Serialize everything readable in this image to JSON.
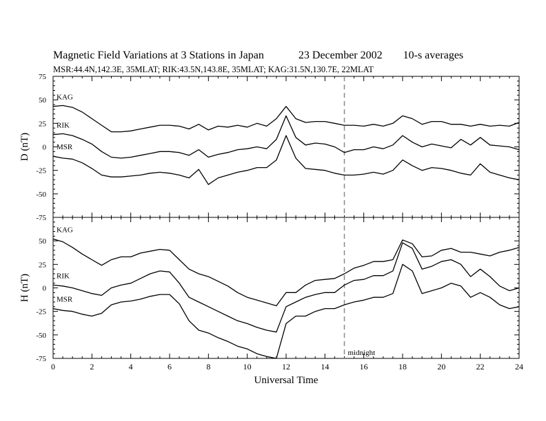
{
  "header": {
    "title": "Magnetic Field Variations at 3 Stations in Japan",
    "date": "23 December 2002",
    "averaging": "10-s averages",
    "stations_line": "MSR:44.4N,142.3E, 35MLAT;  RIK:43.5N,143.8E, 35MLAT;  KAG:31.5N,130.7E, 22MLAT"
  },
  "chart_data": [
    {
      "type": "line",
      "panel": "D",
      "ylabel": "D (nT)",
      "ylim": [
        -75,
        75
      ],
      "yticks": [
        75,
        50,
        25,
        0,
        -25,
        -50,
        -75
      ],
      "xlim": [
        0,
        24
      ],
      "grid": false,
      "series": [
        {
          "name": "KAG",
          "color": "#000000",
          "x": [
            0,
            0.5,
            1,
            1.5,
            2,
            2.5,
            3,
            3.5,
            4,
            4.5,
            5,
            5.5,
            6,
            6.5,
            7,
            7.5,
            8,
            8.5,
            9,
            9.5,
            10,
            10.5,
            11,
            11.5,
            12,
            12.5,
            13,
            13.5,
            14,
            14.5,
            15,
            15.5,
            16,
            16.5,
            17,
            17.5,
            18,
            18.5,
            19,
            19.5,
            20,
            20.5,
            21,
            21.5,
            22,
            22.5,
            23,
            23.5,
            24
          ],
          "y": [
            43,
            44,
            42,
            37,
            30,
            23,
            16,
            16,
            17,
            19,
            21,
            23,
            23,
            22,
            19,
            24,
            18,
            22,
            21,
            23,
            21,
            25,
            22,
            30,
            43,
            30,
            26,
            27,
            27,
            25,
            23,
            23,
            22,
            24,
            22,
            25,
            33,
            30,
            24,
            27,
            27,
            24,
            24,
            22,
            24,
            22,
            23,
            22,
            26
          ]
        },
        {
          "name": "RIK",
          "color": "#000000",
          "x": [
            0,
            0.5,
            1,
            1.5,
            2,
            2.5,
            3,
            3.5,
            4,
            4.5,
            5,
            5.5,
            6,
            6.5,
            7,
            7.5,
            8,
            8.5,
            9,
            9.5,
            10,
            10.5,
            11,
            11.5,
            12,
            12.5,
            13,
            13.5,
            14,
            14.5,
            15,
            15.5,
            16,
            16.5,
            17,
            17.5,
            18,
            18.5,
            19,
            19.5,
            20,
            20.5,
            21,
            21.5,
            22,
            22.5,
            23,
            23.5,
            24
          ],
          "y": [
            13,
            14,
            12,
            8,
            3,
            -5,
            -11,
            -12,
            -11,
            -9,
            -7,
            -5,
            -5,
            -6,
            -9,
            -3,
            -11,
            -8,
            -6,
            -3,
            -2,
            0,
            -2,
            8,
            33,
            10,
            2,
            4,
            3,
            0,
            -6,
            -3,
            -3,
            0,
            -2,
            2,
            12,
            5,
            0,
            3,
            1,
            -1,
            8,
            2,
            10,
            2,
            1,
            0,
            -3
          ]
        },
        {
          "name": "MSR",
          "color": "#000000",
          "x": [
            0,
            0.5,
            1,
            1.5,
            2,
            2.5,
            3,
            3.5,
            4,
            4.5,
            5,
            5.5,
            6,
            6.5,
            7,
            7.5,
            8,
            8.5,
            9,
            9.5,
            10,
            10.5,
            11,
            11.5,
            12,
            12.5,
            13,
            13.5,
            14,
            14.5,
            15,
            15.5,
            16,
            16.5,
            17,
            17.5,
            18,
            18.5,
            19,
            19.5,
            20,
            20.5,
            21,
            21.5,
            22,
            22.5,
            23,
            23.5,
            24
          ],
          "y": [
            -10,
            -12,
            -13,
            -17,
            -23,
            -30,
            -32,
            -32,
            -31,
            -30,
            -28,
            -27,
            -28,
            -30,
            -33,
            -24,
            -40,
            -33,
            -30,
            -27,
            -25,
            -22,
            -22,
            -14,
            12,
            -12,
            -23,
            -24,
            -25,
            -28,
            -30,
            -30,
            -29,
            -27,
            -29,
            -25,
            -14,
            -20,
            -25,
            -22,
            -23,
            -25,
            -28,
            -30,
            -18,
            -27,
            -30,
            -33,
            -35
          ]
        }
      ],
      "labels": [
        "KAG",
        "RIK",
        "MSR"
      ]
    },
    {
      "type": "line",
      "panel": "H",
      "ylabel": "H (nT)",
      "ylim": [
        -75,
        75
      ],
      "yticks": [
        75,
        50,
        25,
        0,
        -25,
        -50,
        -75
      ],
      "xlim": [
        0,
        24
      ],
      "xticks": [
        0,
        2,
        4,
        6,
        8,
        10,
        12,
        14,
        16,
        18,
        20,
        22,
        24
      ],
      "xlabel": "Universal Time",
      "grid": false,
      "series": [
        {
          "name": "KAG",
          "color": "#000000",
          "x": [
            0,
            0.5,
            1,
            1.5,
            2,
            2.5,
            3,
            3.5,
            4,
            4.5,
            5,
            5.5,
            6,
            6.5,
            7,
            7.5,
            8,
            8.5,
            9,
            9.5,
            10,
            10.5,
            11,
            11.5,
            12,
            12.5,
            13,
            13.5,
            14,
            14.5,
            15,
            15.5,
            16,
            16.5,
            17,
            17.5,
            18,
            18.5,
            19,
            19.5,
            20,
            20.5,
            21,
            21.5,
            22,
            22.5,
            23,
            23.5,
            24
          ],
          "y": [
            52,
            49,
            43,
            36,
            30,
            24,
            30,
            33,
            33,
            37,
            39,
            41,
            40,
            30,
            20,
            15,
            12,
            7,
            2,
            -5,
            -10,
            -13,
            -16,
            -19,
            -5,
            -5,
            3,
            8,
            9,
            10,
            15,
            21,
            24,
            28,
            28,
            30,
            51,
            47,
            33,
            34,
            40,
            42,
            38,
            38,
            36,
            34,
            38,
            40,
            43
          ]
        },
        {
          "name": "RIK",
          "color": "#000000",
          "x": [
            0,
            0.5,
            1,
            1.5,
            2,
            2.5,
            3,
            3.5,
            4,
            4.5,
            5,
            5.5,
            6,
            6.5,
            7,
            7.5,
            8,
            8.5,
            9,
            9.5,
            10,
            10.5,
            11,
            11.5,
            12,
            12.5,
            13,
            13.5,
            14,
            14.5,
            15,
            15.5,
            16,
            16.5,
            17,
            17.5,
            18,
            18.5,
            19,
            19.5,
            20,
            20.5,
            21,
            21.5,
            22,
            22.5,
            23,
            23.5,
            24
          ],
          "y": [
            3,
            2,
            0,
            -3,
            -6,
            -8,
            0,
            3,
            5,
            10,
            15,
            18,
            17,
            5,
            -10,
            -15,
            -20,
            -25,
            -30,
            -35,
            -38,
            -42,
            -45,
            -47,
            -20,
            -15,
            -10,
            -7,
            -5,
            -5,
            3,
            8,
            9,
            13,
            13,
            18,
            48,
            42,
            20,
            23,
            28,
            30,
            25,
            12,
            20,
            12,
            2,
            -3,
            0
          ]
        },
        {
          "name": "MSR",
          "color": "#000000",
          "x": [
            0,
            0.5,
            1,
            1.5,
            2,
            2.5,
            3,
            3.5,
            4,
            4.5,
            5,
            5.5,
            6,
            6.5,
            7,
            7.5,
            8,
            8.5,
            9,
            9.5,
            10,
            10.5,
            11,
            11.5,
            12,
            12.5,
            13,
            13.5,
            14,
            14.5,
            15,
            15.5,
            16,
            16.5,
            17,
            17.5,
            18,
            18.5,
            19,
            19.5,
            20,
            20.5,
            21,
            21.5,
            22,
            22.5,
            23,
            23.5,
            24
          ],
          "y": [
            -22,
            -24,
            -25,
            -28,
            -30,
            -27,
            -18,
            -15,
            -14,
            -12,
            -9,
            -7,
            -7,
            -17,
            -35,
            -45,
            -48,
            -53,
            -57,
            -62,
            -65,
            -70,
            -73,
            -75,
            -38,
            -30,
            -30,
            -25,
            -22,
            -22,
            -18,
            -15,
            -13,
            -10,
            -10,
            -6,
            25,
            18,
            -6,
            -3,
            0,
            5,
            2,
            -10,
            -5,
            -10,
            -18,
            -22,
            -20
          ]
        }
      ],
      "labels": [
        "KAG",
        "RIK",
        "MSR"
      ],
      "marker": {
        "x": 15,
        "label": "midnight"
      }
    }
  ]
}
